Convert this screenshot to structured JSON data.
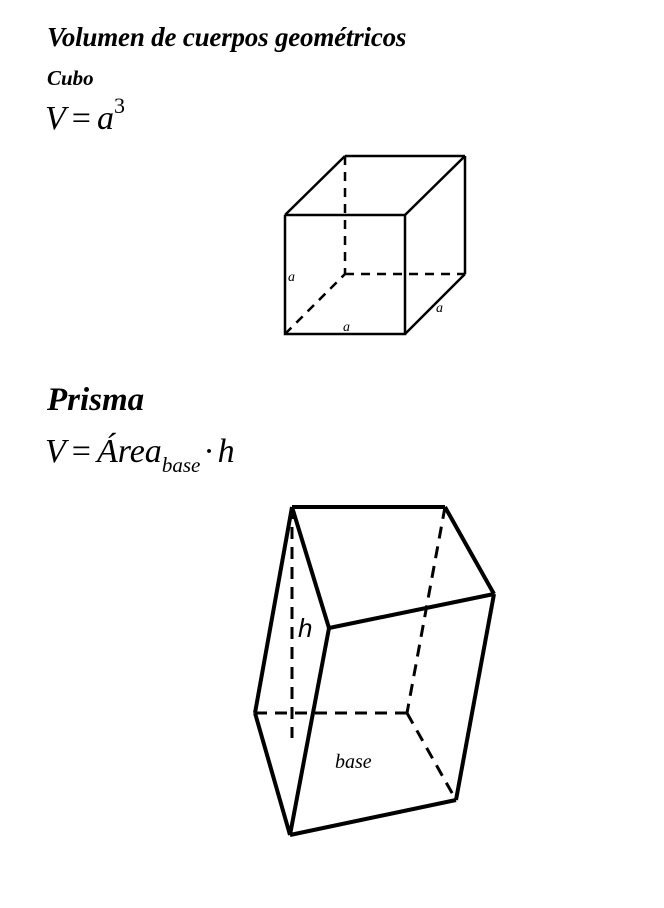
{
  "title": "Volumen de cuerpos geométricos",
  "cube": {
    "heading": "Cubo",
    "formula": {
      "lhs": "V",
      "eq": "=",
      "var": "a",
      "exp": "3"
    },
    "labels": {
      "edge_left": "a",
      "edge_bottom": "a",
      "edge_right": "a"
    }
  },
  "prism": {
    "heading": "Prisma",
    "formula": {
      "lhs": "V",
      "eq": "=",
      "area": "Área",
      "sub": "base",
      "dot": "·",
      "h": "h"
    },
    "labels": {
      "height": "h",
      "base": "base"
    }
  }
}
